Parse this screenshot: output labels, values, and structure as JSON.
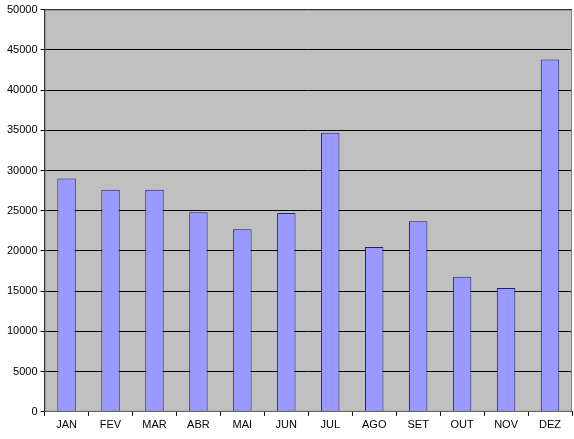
{
  "chart_data": {
    "type": "bar",
    "categories": [
      "JAN",
      "FEV",
      "MAR",
      "ABR",
      "MAI",
      "JUN",
      "JUL",
      "AGO",
      "SET",
      "OUT",
      "NOV",
      "DEZ"
    ],
    "values": [
      29000,
      27600,
      27600,
      24800,
      22700,
      24700,
      34700,
      20500,
      23700,
      16800,
      15400,
      43800
    ],
    "color": "#9999ff",
    "ylim": [
      0,
      50000
    ],
    "yticks": [
      0,
      5000,
      10000,
      15000,
      20000,
      25000,
      30000,
      35000,
      40000,
      45000,
      50000
    ],
    "grid": true
  }
}
